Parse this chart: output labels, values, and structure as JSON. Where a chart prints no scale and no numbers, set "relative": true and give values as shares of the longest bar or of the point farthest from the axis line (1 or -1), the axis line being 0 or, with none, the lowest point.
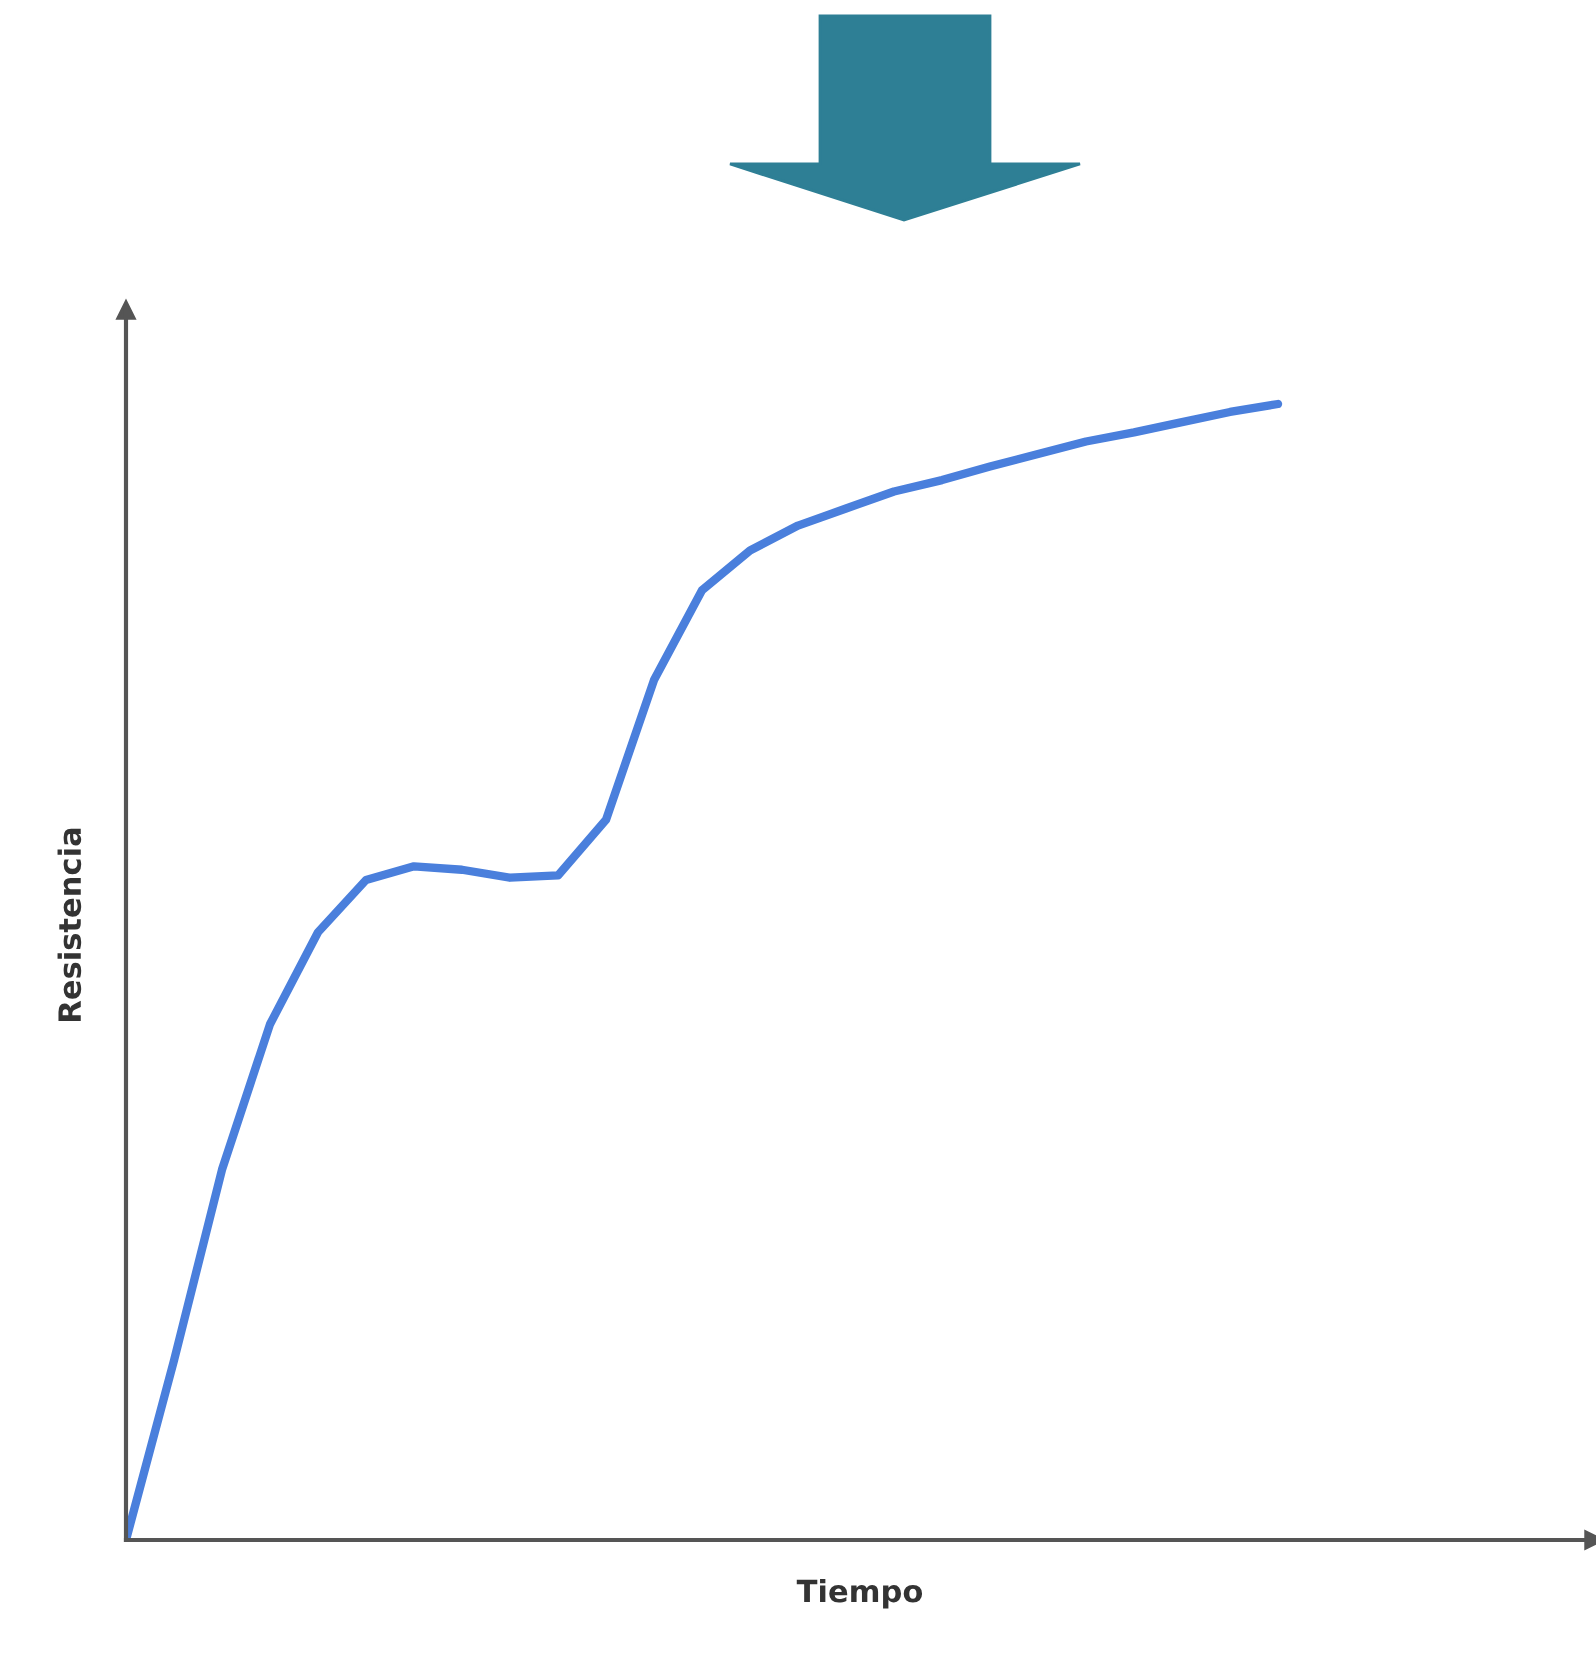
{
  "chart_data": {
    "type": "line",
    "relative": true,
    "xlabel": "Tiempo",
    "ylabel": "Resistencia",
    "legend": false,
    "marker": "none",
    "line_style": "solid",
    "categories": [
      null,
      null,
      null,
      null,
      null,
      null,
      null,
      null,
      null,
      null,
      null,
      null,
      null,
      null,
      null,
      null,
      null,
      null,
      null,
      null,
      null,
      null,
      null,
      null,
      null
    ],
    "series": [
      {
        "color": "#4a7fdc",
        "values": [
          0,
          0.158,
          0.326,
          0.454,
          0.535,
          0.581,
          0.593,
          0.59,
          0.583,
          0.585,
          0.634,
          0.757,
          0.836,
          0.871,
          0.893,
          0.908,
          0.923,
          0.933,
          0.945,
          0.956,
          0.967,
          0.975,
          0.984,
          0.993,
          1
        ]
      }
    ]
  }
}
